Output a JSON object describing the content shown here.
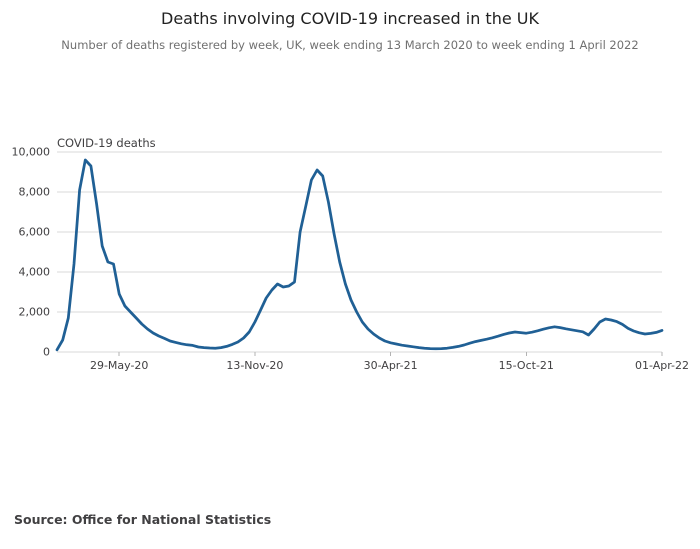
{
  "header": {
    "title": "Deaths involving COVID-19 increased in the UK",
    "subtitle": "Number of deaths registered by week, UK, week ending 13 March 2020 to week ending 1 April 2022"
  },
  "chart_data": {
    "type": "line",
    "title": "Deaths involving COVID-19 increased in the UK",
    "subtitle": "Number of deaths registered by week, UK, week ending 13 March 2020 to week ending 1 April 2022",
    "series_label": "COVID-19 deaths",
    "line_color": "#206095",
    "grid": "horizontal",
    "legend_position": "none",
    "ylim": [
      0,
      10000
    ],
    "y_ticks": [
      0,
      2000,
      4000,
      6000,
      8000,
      10000
    ],
    "x_tick_labels": [
      "29-May-20",
      "13-Nov-20",
      "30-Apr-21",
      "15-Oct-21",
      "01-Apr-22"
    ],
    "x_tick_indices": [
      11,
      35,
      59,
      83,
      107
    ],
    "x": [
      "13-Mar-20",
      "20-Mar-20",
      "27-Mar-20",
      "03-Apr-20",
      "10-Apr-20",
      "17-Apr-20",
      "24-Apr-20",
      "01-May-20",
      "08-May-20",
      "15-May-20",
      "22-May-20",
      "29-May-20",
      "05-Jun-20",
      "12-Jun-20",
      "19-Jun-20",
      "26-Jun-20",
      "03-Jul-20",
      "10-Jul-20",
      "17-Jul-20",
      "24-Jul-20",
      "31-Jul-20",
      "07-Aug-20",
      "14-Aug-20",
      "21-Aug-20",
      "28-Aug-20",
      "04-Sep-20",
      "11-Sep-20",
      "18-Sep-20",
      "25-Sep-20",
      "02-Oct-20",
      "09-Oct-20",
      "16-Oct-20",
      "23-Oct-20",
      "30-Oct-20",
      "06-Nov-20",
      "13-Nov-20",
      "20-Nov-20",
      "27-Nov-20",
      "04-Dec-20",
      "11-Dec-20",
      "18-Dec-20",
      "25-Dec-20",
      "01-Jan-21",
      "08-Jan-21",
      "15-Jan-21",
      "22-Jan-21",
      "29-Jan-21",
      "05-Feb-21",
      "12-Feb-21",
      "19-Feb-21",
      "26-Feb-21",
      "05-Mar-21",
      "12-Mar-21",
      "19-Mar-21",
      "26-Mar-21",
      "02-Apr-21",
      "09-Apr-21",
      "16-Apr-21",
      "23-Apr-21",
      "30-Apr-21",
      "07-May-21",
      "14-May-21",
      "21-May-21",
      "28-May-21",
      "04-Jun-21",
      "11-Jun-21",
      "18-Jun-21",
      "25-Jun-21",
      "02-Jul-21",
      "09-Jul-21",
      "16-Jul-21",
      "23-Jul-21",
      "30-Jul-21",
      "06-Aug-21",
      "13-Aug-21",
      "20-Aug-21",
      "27-Aug-21",
      "03-Sep-21",
      "10-Sep-21",
      "17-Sep-21",
      "24-Sep-21",
      "01-Oct-21",
      "08-Oct-21",
      "15-Oct-21",
      "22-Oct-21",
      "29-Oct-21",
      "05-Nov-21",
      "12-Nov-21",
      "19-Nov-21",
      "26-Nov-21",
      "03-Dec-21",
      "10-Dec-21",
      "17-Dec-21",
      "24-Dec-21",
      "31-Dec-21",
      "07-Jan-22",
      "14-Jan-22",
      "21-Jan-22",
      "28-Jan-22",
      "04-Feb-22",
      "11-Feb-22",
      "18-Feb-22",
      "25-Feb-22",
      "04-Mar-22",
      "11-Mar-22",
      "18-Mar-22",
      "25-Mar-22",
      "01-Apr-22"
    ],
    "values": [
      110,
      600,
      1700,
      4400,
      8100,
      9600,
      9300,
      7400,
      5300,
      4500,
      4400,
      2900,
      2300,
      2000,
      1700,
      1400,
      1150,
      950,
      800,
      680,
      550,
      480,
      410,
      360,
      330,
      250,
      220,
      200,
      190,
      220,
      280,
      380,
      500,
      700,
      1000,
      1500,
      2100,
      2700,
      3100,
      3400,
      3250,
      3300,
      3500,
      6000,
      7300,
      8600,
      9100,
      8800,
      7500,
      5900,
      4500,
      3400,
      2600,
      2000,
      1500,
      1150,
      900,
      700,
      550,
      460,
      400,
      340,
      300,
      260,
      220,
      190,
      170,
      160,
      170,
      190,
      230,
      280,
      350,
      440,
      520,
      580,
      640,
      710,
      790,
      880,
      950,
      1000,
      970,
      940,
      990,
      1060,
      1140,
      1210,
      1260,
      1220,
      1160,
      1110,
      1060,
      1010,
      850,
      1150,
      1500,
      1650,
      1600,
      1520,
      1380,
      1180,
      1050,
      960,
      900,
      930,
      980,
      1080
    ]
  },
  "footer": {
    "source": "Source: Office for National Statistics"
  }
}
